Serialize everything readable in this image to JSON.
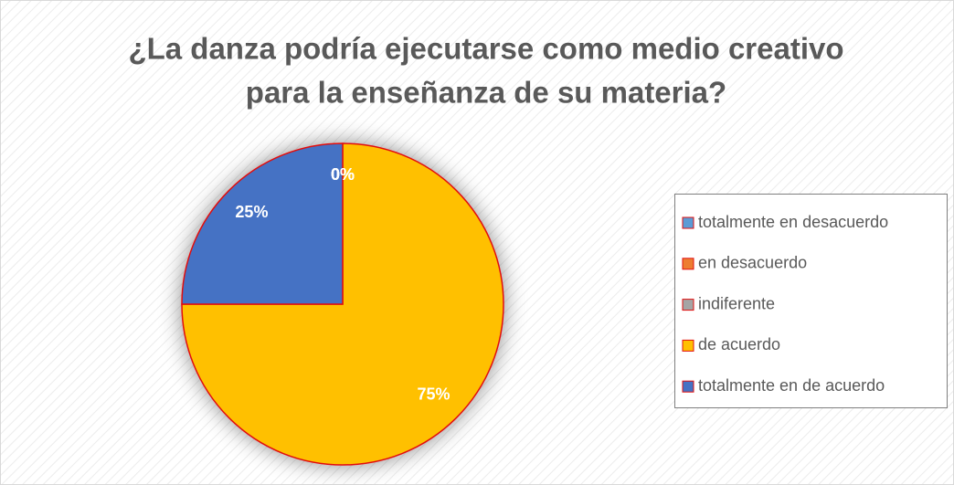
{
  "chart_data": {
    "type": "pie",
    "title": [
      "¿La danza podría ejecutarse como medio creativo",
      "para la enseñanza de su materia?"
    ],
    "categories": [
      "totalmente en desacuerdo",
      "en desacuerdo",
      "indiferente",
      "de acuerdo",
      "totalmente en de acuerdo"
    ],
    "values": [
      0,
      0,
      0,
      75,
      25
    ],
    "value_labels": [
      "0%",
      "0%",
      "0%",
      "75%",
      "25%"
    ],
    "colors": [
      "#5b9bd5",
      "#ed7d31",
      "#a5a5a5",
      "#ffc000",
      "#4472c4"
    ],
    "legend": "right"
  }
}
